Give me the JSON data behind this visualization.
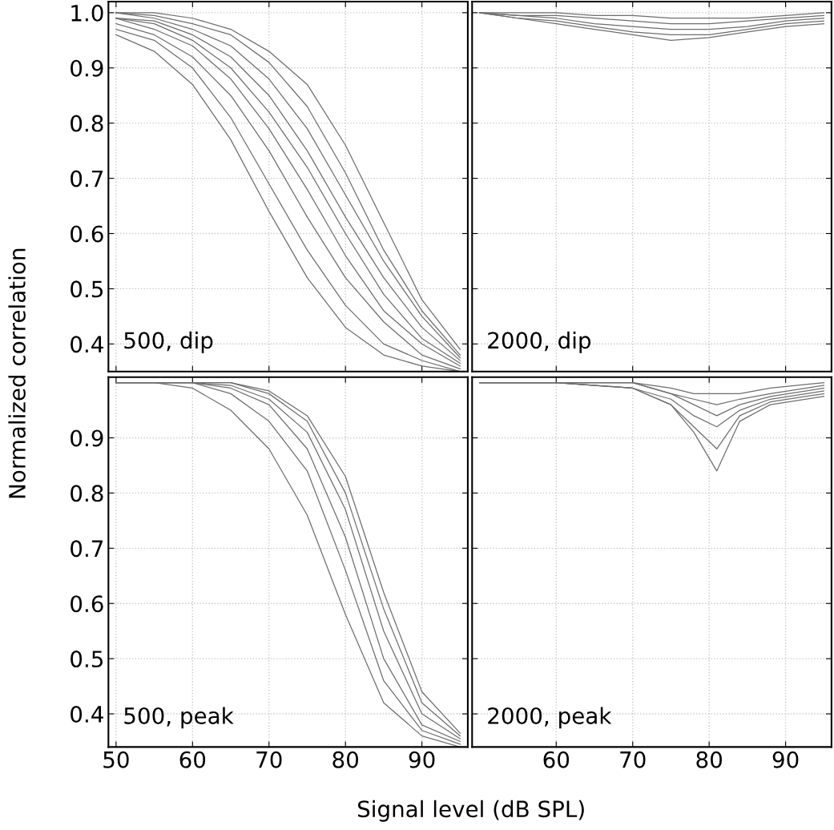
{
  "chart_data": [
    {
      "type": "line",
      "ylabel": "Normalized correlation",
      "annotations": [
        "500, dip"
      ],
      "x": [
        50,
        55,
        60,
        65,
        70,
        75,
        80,
        85,
        90,
        95
      ],
      "xlim": [
        49,
        96
      ],
      "ylim": [
        0.35,
        1.02
      ],
      "xticks": [
        50,
        60,
        70,
        80,
        90
      ],
      "yticks": [
        0.4,
        0.5,
        0.6,
        0.7,
        0.8,
        0.9,
        {
          "value": 1.0,
          "label": "1.0"
        }
      ],
      "tick_labels": "y",
      "grid": true,
      "series": [
        {
          "color": "#6e6e6e",
          "values": [
            0.96,
            0.93,
            0.87,
            0.77,
            0.64,
            0.52,
            0.43,
            0.38,
            0.36,
            0.35
          ]
        },
        {
          "color": "#6e6e6e",
          "values": [
            0.97,
            0.95,
            0.9,
            0.81,
            0.69,
            0.57,
            0.47,
            0.4,
            0.37,
            0.35
          ]
        },
        {
          "color": "#6e6e6e",
          "values": [
            0.98,
            0.96,
            0.92,
            0.85,
            0.75,
            0.63,
            0.52,
            0.44,
            0.38,
            0.355
          ]
        },
        {
          "color": "#6e6e6e",
          "values": [
            0.99,
            0.97,
            0.94,
            0.88,
            0.79,
            0.68,
            0.56,
            0.46,
            0.4,
            0.36
          ]
        },
        {
          "color": "#6e6e6e",
          "values": [
            0.99,
            0.98,
            0.95,
            0.9,
            0.82,
            0.72,
            0.6,
            0.49,
            0.41,
            0.365
          ]
        },
        {
          "color": "#6e6e6e",
          "values": [
            0.99,
            0.985,
            0.96,
            0.92,
            0.85,
            0.75,
            0.63,
            0.52,
            0.43,
            0.37
          ]
        },
        {
          "color": "#6e6e6e",
          "values": [
            1.0,
            0.99,
            0.97,
            0.94,
            0.88,
            0.79,
            0.67,
            0.55,
            0.45,
            0.375
          ]
        },
        {
          "color": "#6e6e6e",
          "values": [
            1.0,
            0.995,
            0.98,
            0.96,
            0.91,
            0.83,
            0.71,
            0.57,
            0.46,
            0.38
          ]
        },
        {
          "color": "#6e6e6e",
          "values": [
            1.0,
            1.0,
            0.99,
            0.97,
            0.93,
            0.87,
            0.76,
            0.62,
            0.48,
            0.39
          ]
        }
      ]
    },
    {
      "type": "line",
      "annotations": [
        "2000, dip"
      ],
      "x": [
        50,
        55,
        60,
        65,
        70,
        75,
        80,
        85,
        90,
        95
      ],
      "xlim": [
        49,
        96
      ],
      "ylim": [
        0.35,
        1.02
      ],
      "xticks": [
        60,
        70,
        80,
        90
      ],
      "yticks": [
        0.4,
        0.5,
        0.6,
        0.7,
        0.8,
        0.9,
        1.0
      ],
      "tick_labels": false,
      "grid": true,
      "series": [
        {
          "color": "#6e6e6e",
          "values": [
            1.0,
            0.99,
            0.98,
            0.97,
            0.96,
            0.95,
            0.955,
            0.965,
            0.975,
            0.98
          ]
        },
        {
          "color": "#6e6e6e",
          "values": [
            1.0,
            0.99,
            0.985,
            0.975,
            0.965,
            0.96,
            0.96,
            0.97,
            0.98,
            0.985
          ]
        },
        {
          "color": "#6e6e6e",
          "values": [
            1.0,
            0.995,
            0.99,
            0.98,
            0.975,
            0.97,
            0.97,
            0.975,
            0.985,
            0.99
          ]
        },
        {
          "color": "#6e6e6e",
          "values": [
            1.0,
            0.995,
            0.995,
            0.99,
            0.985,
            0.98,
            0.98,
            0.985,
            0.99,
            0.995
          ]
        },
        {
          "color": "#6e6e6e",
          "values": [
            1.0,
            1.0,
            1.0,
            0.995,
            0.995,
            0.99,
            0.99,
            0.99,
            0.995,
            1.0
          ]
        }
      ]
    },
    {
      "type": "line",
      "xlabel": "Signal level (dB SPL)",
      "annotations": [
        "500, peak"
      ],
      "x": [
        50,
        55,
        60,
        65,
        70,
        75,
        80,
        85,
        90,
        95
      ],
      "xlim": [
        49,
        96
      ],
      "ylim": [
        0.34,
        1.01
      ],
      "xticks": [
        50,
        60,
        70,
        80,
        90
      ],
      "yticks": [
        0.4,
        0.5,
        0.6,
        0.7,
        0.8,
        0.9
      ],
      "grid": true,
      "series": [
        {
          "color": "#6e6e6e",
          "values": [
            1.0,
            1.0,
            0.99,
            0.95,
            0.88,
            0.76,
            0.58,
            0.42,
            0.36,
            0.34
          ]
        },
        {
          "color": "#6e6e6e",
          "values": [
            1.0,
            1.0,
            1.0,
            0.98,
            0.93,
            0.84,
            0.66,
            0.46,
            0.37,
            0.345
          ]
        },
        {
          "color": "#6e6e6e",
          "values": [
            1.0,
            1.0,
            1.0,
            0.99,
            0.96,
            0.88,
            0.72,
            0.5,
            0.38,
            0.35
          ]
        },
        {
          "color": "#6e6e6e",
          "values": [
            1.0,
            1.0,
            1.0,
            0.995,
            0.97,
            0.91,
            0.77,
            0.55,
            0.4,
            0.355
          ]
        },
        {
          "color": "#6e6e6e",
          "values": [
            1.0,
            1.0,
            1.0,
            1.0,
            0.98,
            0.93,
            0.8,
            0.59,
            0.42,
            0.36
          ]
        },
        {
          "color": "#6e6e6e",
          "values": [
            1.0,
            1.0,
            1.0,
            1.0,
            0.985,
            0.94,
            0.83,
            0.62,
            0.44,
            0.365
          ]
        }
      ]
    },
    {
      "type": "line",
      "annotations": [
        "2000, peak"
      ],
      "x": [
        50,
        60,
        70,
        75,
        78,
        81,
        84,
        88,
        95
      ],
      "xlim": [
        49,
        96
      ],
      "ylim": [
        0.34,
        1.01
      ],
      "xticks": [
        60,
        70,
        80,
        90
      ],
      "yticks": [
        0.4,
        0.5,
        0.6,
        0.7,
        0.8,
        0.9
      ],
      "tick_labels": "x",
      "grid": true,
      "series": [
        {
          "color": "#6e6e6e",
          "values": [
            1.0,
            1.0,
            0.99,
            0.96,
            0.91,
            0.84,
            0.93,
            0.96,
            0.975
          ]
        },
        {
          "color": "#6e6e6e",
          "values": [
            1.0,
            1.0,
            0.99,
            0.96,
            0.92,
            0.88,
            0.94,
            0.965,
            0.98
          ]
        },
        {
          "color": "#6e6e6e",
          "values": [
            1.0,
            1.0,
            0.99,
            0.97,
            0.94,
            0.92,
            0.95,
            0.97,
            0.985
          ]
        },
        {
          "color": "#6e6e6e",
          "values": [
            1.0,
            1.0,
            1.0,
            0.98,
            0.96,
            0.94,
            0.96,
            0.975,
            0.99
          ]
        },
        {
          "color": "#6e6e6e",
          "values": [
            1.0,
            1.0,
            1.0,
            0.98,
            0.97,
            0.96,
            0.97,
            0.98,
            0.995
          ]
        },
        {
          "color": "#6e6e6e",
          "values": [
            1.0,
            1.0,
            1.0,
            0.99,
            0.98,
            0.98,
            0.98,
            0.99,
            1.0
          ]
        }
      ]
    }
  ]
}
